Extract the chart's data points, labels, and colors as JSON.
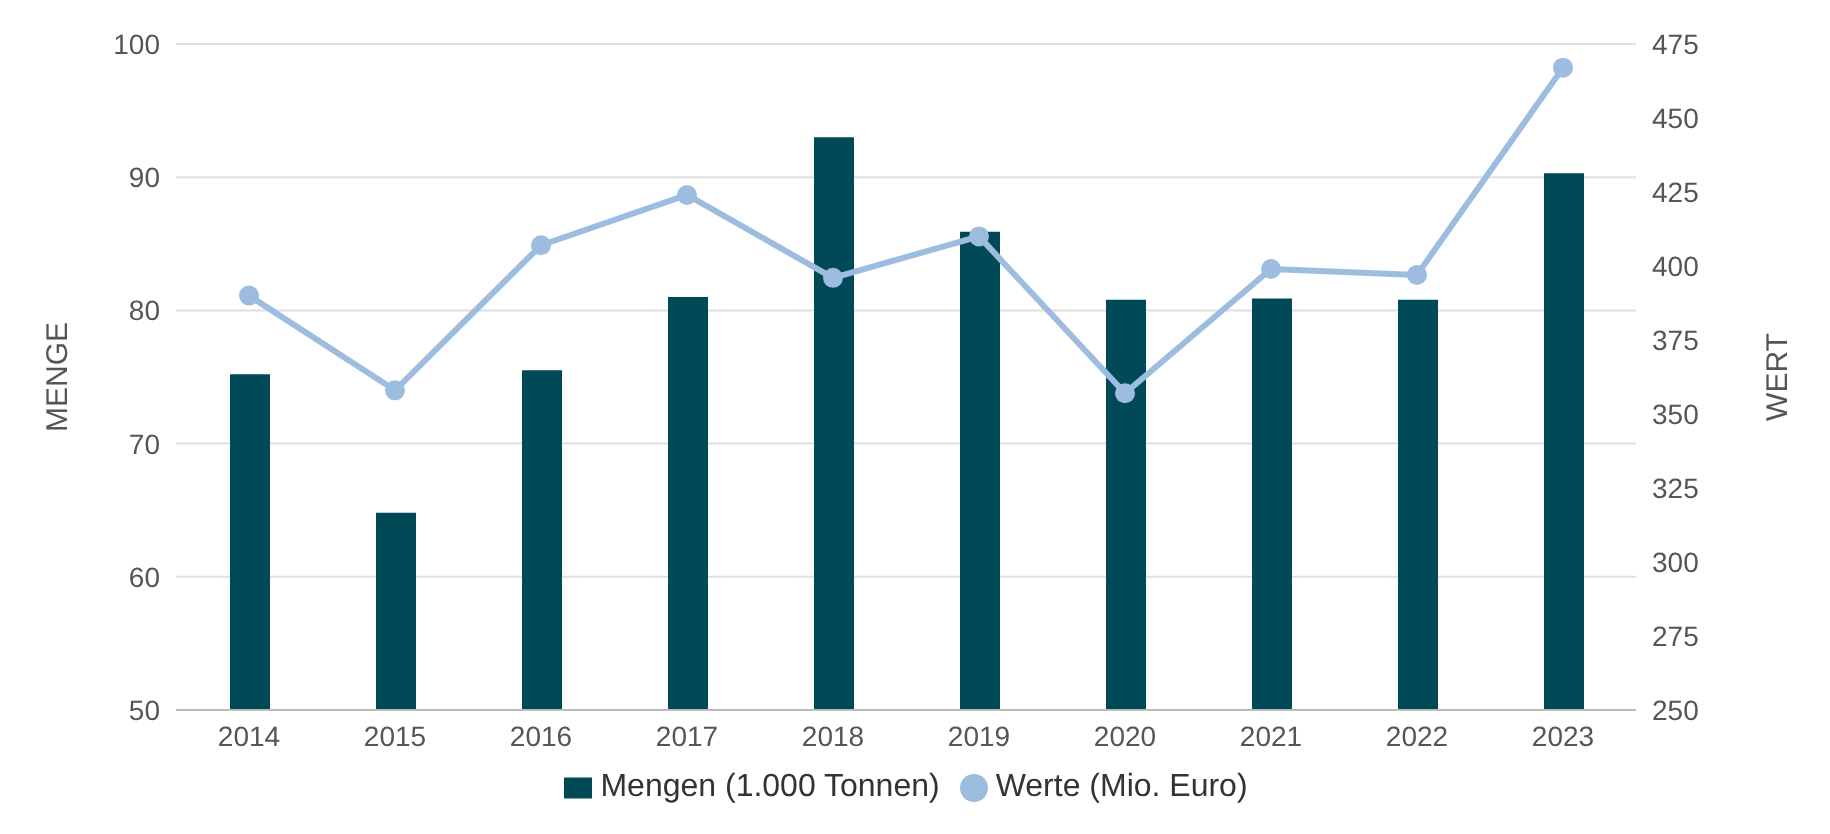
{
  "chart_data": {
    "type": "bar",
    "categories": [
      "2014",
      "2015",
      "2016",
      "2017",
      "2018",
      "2019",
      "2020",
      "2021",
      "2022",
      "2023"
    ],
    "series": [
      {
        "name": "Mengen (1.000 Tonnen)",
        "color": "#004a57",
        "values": [
          75.2,
          64.8,
          75.5,
          81.0,
          93.0,
          85.9,
          80.8,
          80.9,
          80.8,
          90.3
        ]
      },
      {
        "name": "Werte (Mio. Euro)",
        "type": "line",
        "axis": "y2",
        "color": "#9dbde0",
        "values": [
          390,
          358,
          407,
          424,
          396,
          410,
          357,
          399,
          397,
          467
        ]
      }
    ],
    "ylabel": "MENGE",
    "y2label": "WERT",
    "ylim": [
      50,
      100
    ],
    "yticks": [
      50,
      60,
      70,
      80,
      90,
      100
    ],
    "y2lim": [
      250,
      475
    ],
    "y2ticks": [
      250,
      275,
      300,
      325,
      350,
      375,
      400,
      425,
      450,
      475
    ],
    "grid": "y",
    "legend": "bottom",
    "marker": "circle"
  }
}
